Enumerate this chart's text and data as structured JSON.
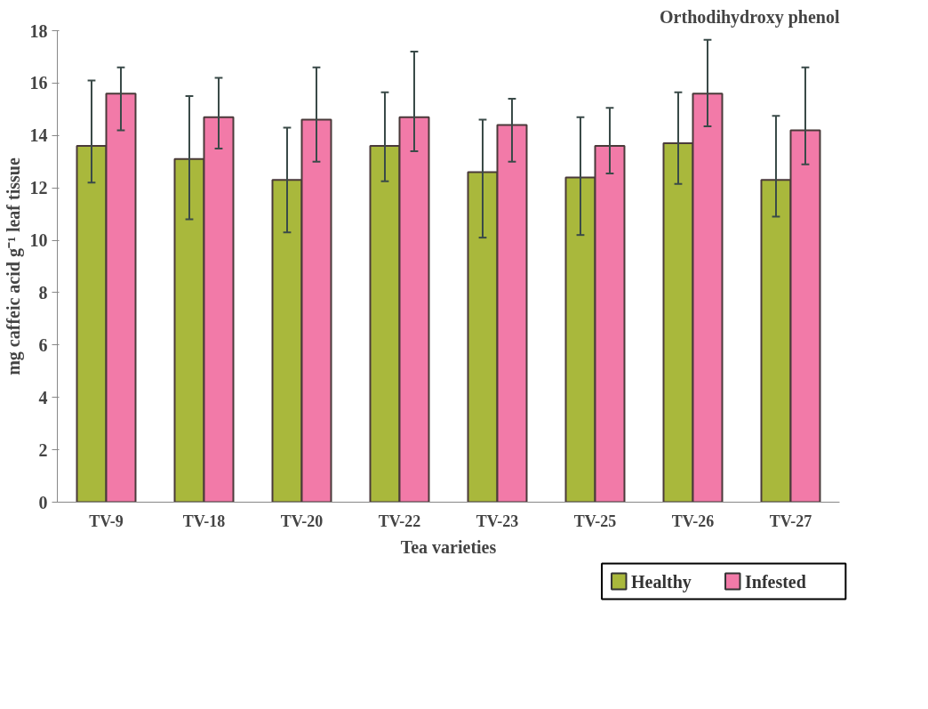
{
  "chart_data": {
    "type": "bar",
    "title": "Orthodihydroxy phenol",
    "xlabel": "Tea varieties",
    "ylabel": "mg caffeic acid g⁻¹ leaf tissue",
    "categories": [
      "TV-9",
      "TV-18",
      "TV-20",
      "TV-22",
      "TV-23",
      "TV-25",
      "TV-26",
      "TV-27"
    ],
    "series": [
      {
        "name": "Healthy",
        "color": "#a9b83c",
        "values": [
          13.6,
          13.1,
          12.3,
          13.6,
          12.6,
          12.4,
          13.7,
          12.3
        ],
        "errors": [
          [
            12.2,
            16.1
          ],
          [
            10.8,
            15.5
          ],
          [
            10.3,
            14.3
          ],
          [
            12.25,
            15.65
          ],
          [
            10.1,
            14.6
          ],
          [
            10.2,
            14.7
          ],
          [
            12.15,
            15.65
          ],
          [
            10.9,
            14.75
          ]
        ]
      },
      {
        "name": "Infested",
        "color": "#f27aa8",
        "values": [
          15.6,
          14.7,
          14.6,
          14.7,
          14.4,
          13.6,
          15.6,
          14.2
        ],
        "errors": [
          [
            14.2,
            16.6
          ],
          [
            13.5,
            16.2
          ],
          [
            13.0,
            16.6
          ],
          [
            13.4,
            17.2
          ],
          [
            13.0,
            15.4
          ],
          [
            12.55,
            15.05
          ],
          [
            14.35,
            17.65
          ],
          [
            12.9,
            16.6
          ]
        ]
      }
    ],
    "ylim": [
      0,
      18
    ],
    "yticks": [
      0,
      2,
      4,
      6,
      8,
      10,
      12,
      14,
      16,
      18
    ],
    "grid": false,
    "legend": "bottom right"
  }
}
